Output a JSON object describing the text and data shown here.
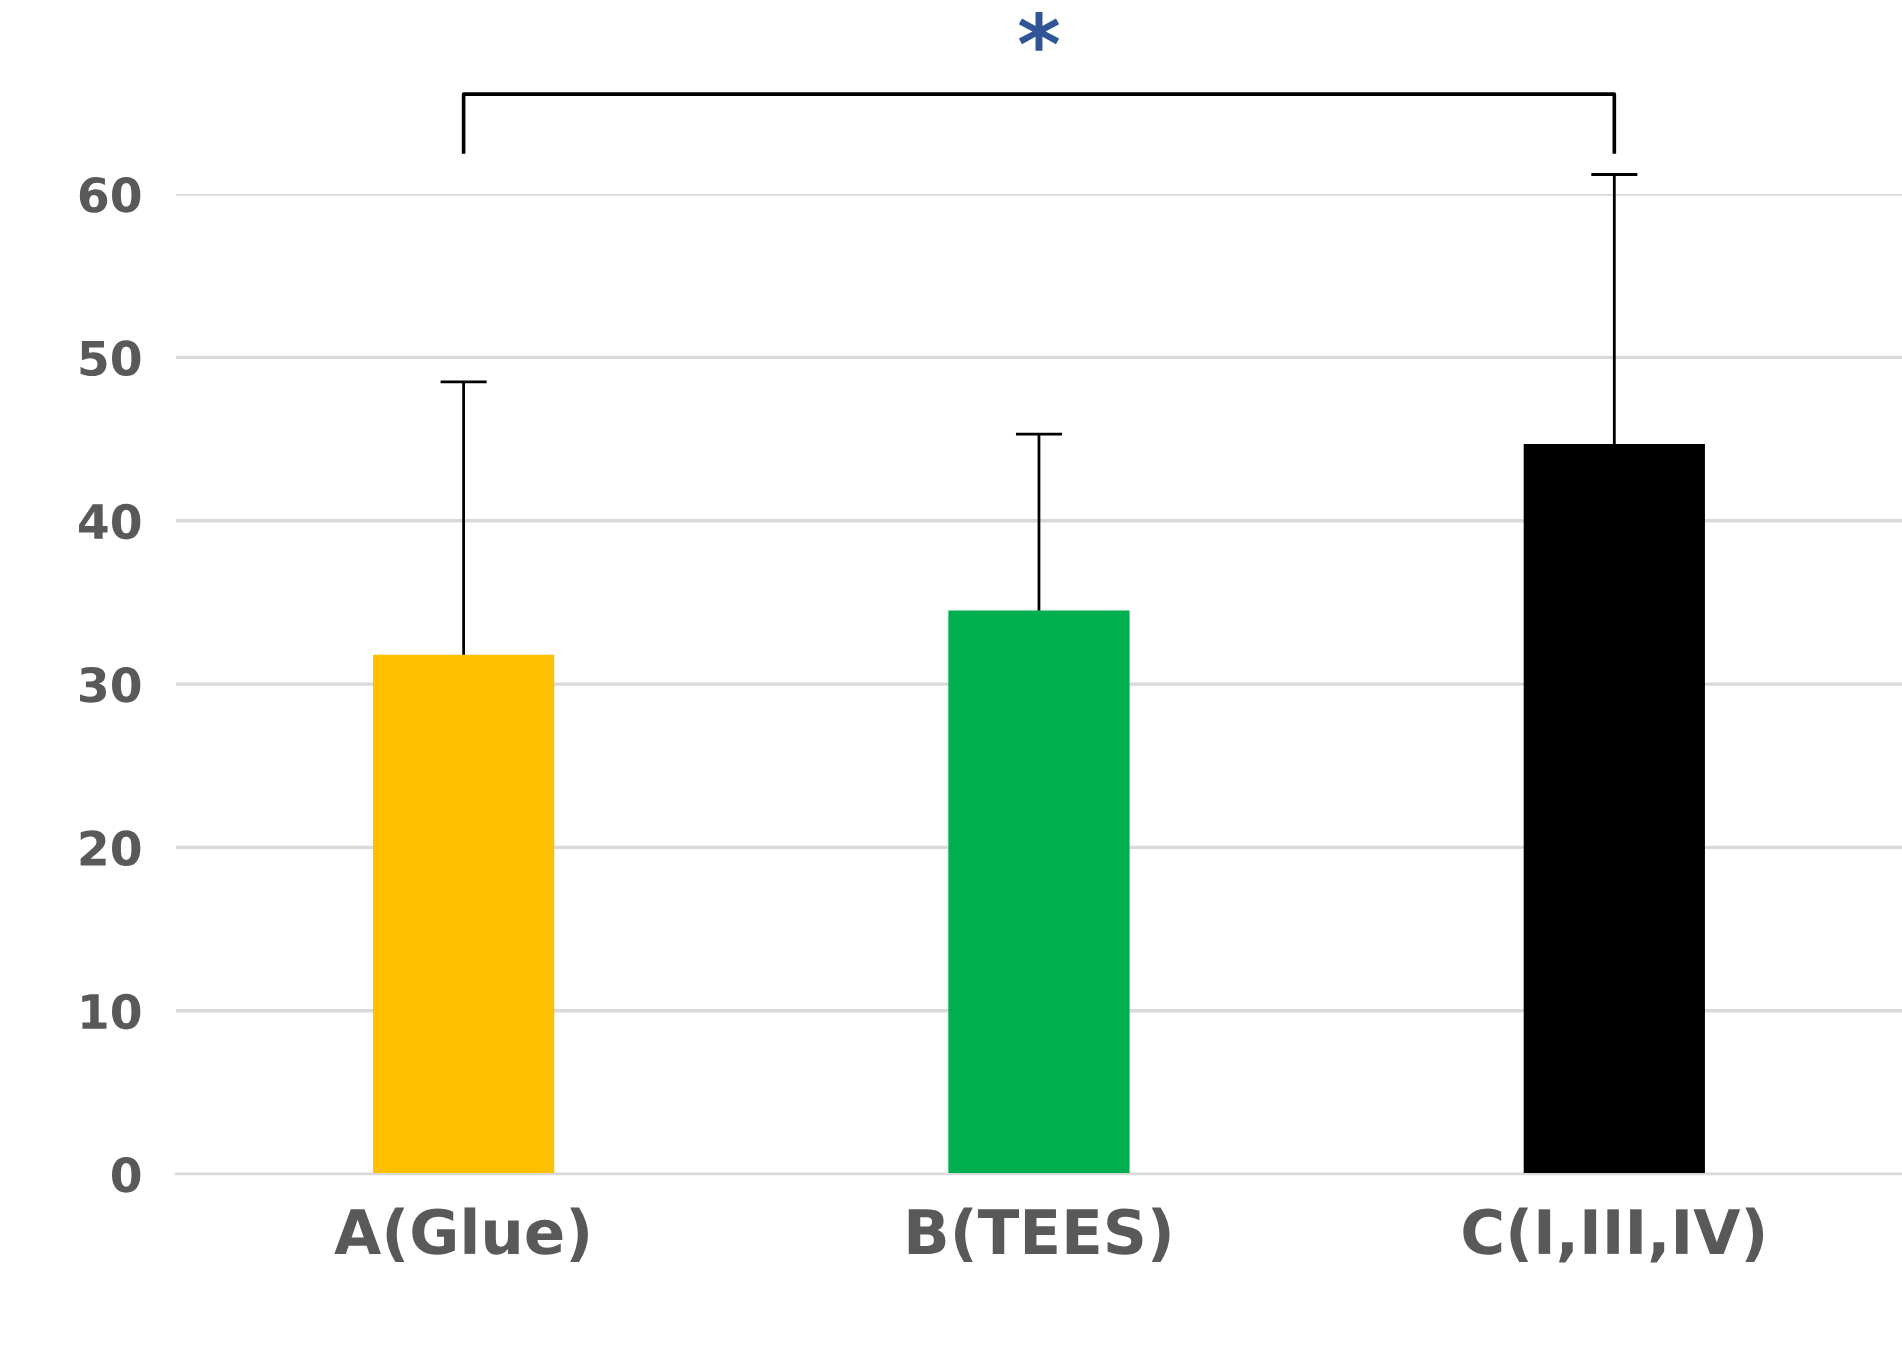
{
  "chart_data": {
    "type": "bar",
    "categories": [
      "A(Glue)",
      "B(TEES)",
      "C(I,III,IV)"
    ],
    "values": [
      31.8,
      34.5,
      44.7
    ],
    "colors": [
      "#ffc000",
      "#00b050",
      "#000000"
    ],
    "errors": [
      [
        31.8,
        48.5
      ],
      [
        34.5,
        45.3
      ],
      [
        44.7,
        61.2
      ]
    ],
    "ylim": [
      0,
      60
    ],
    "yticks": [
      0,
      10,
      20,
      30,
      40,
      50,
      60
    ],
    "grid": "y",
    "annotations": [
      "*"
    ]
  }
}
